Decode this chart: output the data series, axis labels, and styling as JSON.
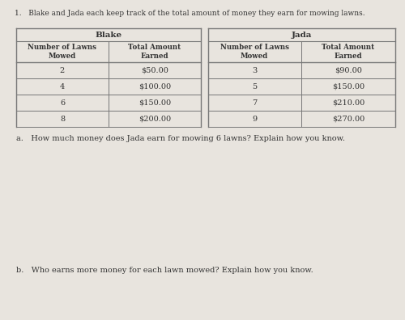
{
  "title": "1.   Blake and Jada each keep track of the total amount of money they earn for mowing lawns.",
  "blake_header": "Blake",
  "jada_header": "Jada",
  "col_headers": [
    "Number of Lawns\nMowed",
    "Total Amount\nEarned"
  ],
  "blake_data": [
    [
      "2",
      "$50.00"
    ],
    [
      "4",
      "$100.00"
    ],
    [
      "6",
      "$150.00"
    ],
    [
      "8",
      "$200.00"
    ]
  ],
  "jada_data": [
    [
      "3",
      "$90.00"
    ],
    [
      "5",
      "$150.00"
    ],
    [
      "7",
      "$210.00"
    ],
    [
      "9",
      "$270.00"
    ]
  ],
  "question_a": "a.   How much money does Jada earn for mowing 6 lawns? Explain how you know.",
  "question_b": "b.   Who earns more money for each lawn mowed? Explain how you know.",
  "bg_color": "#e8e4de",
  "line_color": "#777777",
  "text_color": "#333333",
  "title_color": "#444444"
}
